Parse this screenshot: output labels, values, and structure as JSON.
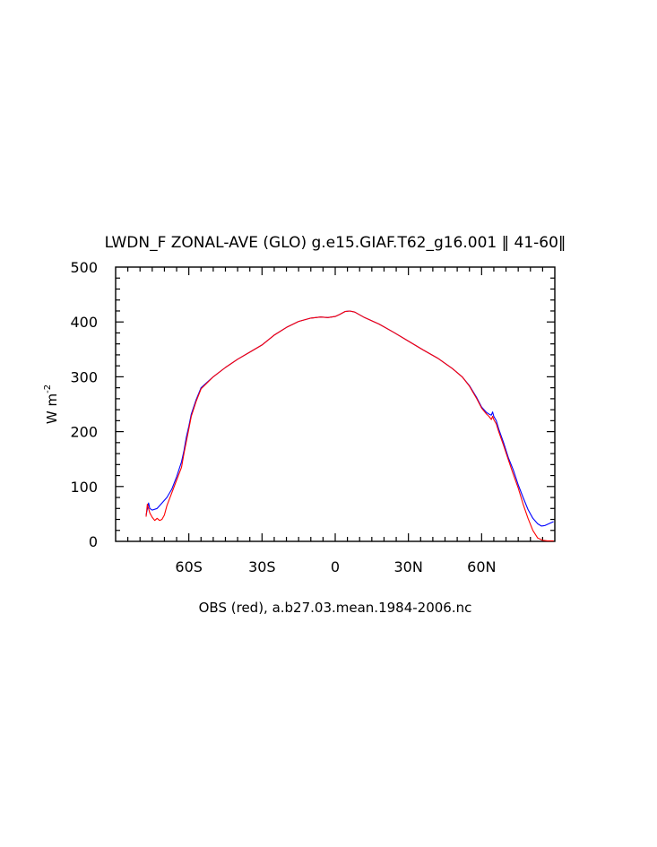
{
  "chart_data": {
    "type": "line",
    "title": "LWDN_F ZONAL-AVE (GLO) g.e15.GIAF.T62_g16.001 ‖ 41-60‖",
    "ylabel": "W m",
    "ylabel_exponent": "-2",
    "note": "OBS (red), a.b27.03.mean.1984-2006.nc",
    "xlim": [
      -90,
      90
    ],
    "ylim": [
      0,
      500
    ],
    "x_ticks": [
      {
        "value": -60,
        "label": "60S"
      },
      {
        "value": -30,
        "label": "30S"
      },
      {
        "value": 0,
        "label": "0"
      },
      {
        "value": 30,
        "label": "30N"
      },
      {
        "value": 60,
        "label": "60N"
      }
    ],
    "y_ticks": [
      {
        "value": 0,
        "label": "0"
      },
      {
        "value": 100,
        "label": "100"
      },
      {
        "value": 200,
        "label": "200"
      },
      {
        "value": 300,
        "label": "300"
      },
      {
        "value": 400,
        "label": "400"
      },
      {
        "value": 500,
        "label": "500"
      }
    ],
    "grid": false,
    "series": [
      {
        "color": "#0000ff",
        "points": [
          [
            -77.5,
            48
          ],
          [
            -76.5,
            70
          ],
          [
            -76,
            60
          ],
          [
            -75,
            57
          ],
          [
            -73,
            60
          ],
          [
            -71,
            70
          ],
          [
            -69,
            80
          ],
          [
            -67,
            95
          ],
          [
            -65,
            118
          ],
          [
            -63,
            145
          ],
          [
            -62,
            165
          ],
          [
            -61,
            190
          ],
          [
            -60,
            210
          ],
          [
            -59,
            232
          ],
          [
            -57,
            258
          ],
          [
            -55,
            280
          ],
          [
            -52,
            292
          ],
          [
            -50,
            300
          ],
          [
            -45,
            317
          ],
          [
            -40,
            332
          ],
          [
            -35,
            345
          ],
          [
            -30,
            358
          ],
          [
            -25,
            376
          ],
          [
            -20,
            390
          ],
          [
            -15,
            401
          ],
          [
            -10,
            407
          ],
          [
            -6,
            409
          ],
          [
            -3,
            408
          ],
          [
            0,
            410
          ],
          [
            2,
            414
          ],
          [
            4,
            419
          ],
          [
            6,
            420
          ],
          [
            8,
            418
          ],
          [
            12,
            408
          ],
          [
            18,
            396
          ],
          [
            24,
            381
          ],
          [
            30,
            365
          ],
          [
            36,
            349
          ],
          [
            42,
            334
          ],
          [
            48,
            315
          ],
          [
            52,
            300
          ],
          [
            55,
            284
          ],
          [
            58,
            262
          ],
          [
            60,
            245
          ],
          [
            62,
            235
          ],
          [
            63,
            232
          ],
          [
            64,
            230
          ],
          [
            64.5,
            236
          ],
          [
            65,
            228
          ],
          [
            66,
            220
          ],
          [
            67,
            205
          ],
          [
            69,
            180
          ],
          [
            71,
            152
          ],
          [
            73,
            130
          ],
          [
            75,
            103
          ],
          [
            77,
            80
          ],
          [
            79,
            58
          ],
          [
            81,
            42
          ],
          [
            83,
            32
          ],
          [
            84.5,
            28
          ],
          [
            86,
            29
          ],
          [
            88,
            33
          ],
          [
            89.5,
            36
          ]
        ]
      },
      {
        "color": "#ff0000",
        "points": [
          [
            -77.5,
            45
          ],
          [
            -77,
            68
          ],
          [
            -76,
            52
          ],
          [
            -75,
            44
          ],
          [
            -74,
            38
          ],
          [
            -73,
            42
          ],
          [
            -72,
            38
          ],
          [
            -71,
            40
          ],
          [
            -70,
            48
          ],
          [
            -69,
            65
          ],
          [
            -67,
            88
          ],
          [
            -65,
            112
          ],
          [
            -63,
            135
          ],
          [
            -62,
            160
          ],
          [
            -61,
            182
          ],
          [
            -60,
            205
          ],
          [
            -59,
            228
          ],
          [
            -57,
            255
          ],
          [
            -55,
            278
          ],
          [
            -52,
            291
          ],
          [
            -50,
            300
          ],
          [
            -45,
            317
          ],
          [
            -40,
            332
          ],
          [
            -35,
            345
          ],
          [
            -30,
            358
          ],
          [
            -25,
            376
          ],
          [
            -20,
            390
          ],
          [
            -15,
            401
          ],
          [
            -10,
            407
          ],
          [
            -6,
            409
          ],
          [
            -3,
            408
          ],
          [
            0,
            410
          ],
          [
            2,
            414
          ],
          [
            4,
            419
          ],
          [
            6,
            420
          ],
          [
            8,
            418
          ],
          [
            12,
            408
          ],
          [
            18,
            396
          ],
          [
            24,
            381
          ],
          [
            30,
            365
          ],
          [
            36,
            349
          ],
          [
            42,
            334
          ],
          [
            48,
            315
          ],
          [
            52,
            300
          ],
          [
            55,
            283
          ],
          [
            58,
            260
          ],
          [
            60,
            243
          ],
          [
            62,
            232
          ],
          [
            63,
            228
          ],
          [
            64,
            222
          ],
          [
            64.5,
            228
          ],
          [
            65,
            222
          ],
          [
            66,
            214
          ],
          [
            67,
            200
          ],
          [
            69,
            175
          ],
          [
            71,
            148
          ],
          [
            73,
            122
          ],
          [
            75,
            97
          ],
          [
            77,
            68
          ],
          [
            79,
            42
          ],
          [
            81,
            20
          ],
          [
            83,
            6
          ],
          [
            85,
            2
          ],
          [
            87,
            1
          ],
          [
            89.5,
            1
          ]
        ]
      }
    ]
  }
}
